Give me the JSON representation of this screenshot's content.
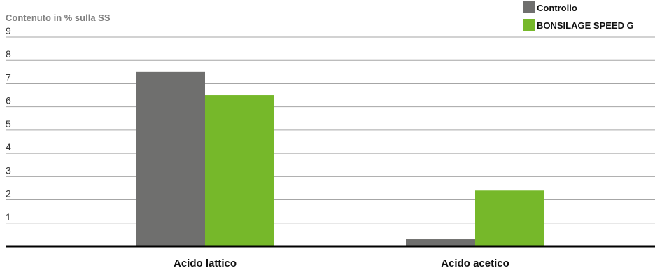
{
  "chart_data": {
    "type": "bar",
    "ylabel": "Contenuto in % sulla SS",
    "xlabel": "",
    "title": "",
    "categories": [
      "Acido lattico",
      "Acido acetico"
    ],
    "series": [
      {
        "name": "Controllo",
        "values": [
          7.5,
          0.3
        ],
        "color": "#6f6f6e"
      },
      {
        "name": "BONSILAGE SPEED G",
        "values": [
          6.5,
          2.4
        ],
        "color": "#76b82a"
      }
    ],
    "ylim": [
      0,
      9
    ],
    "yticks": [
      1,
      2,
      3,
      4,
      5,
      6,
      7,
      8,
      9
    ],
    "grid": true,
    "legend_position": "top-right"
  }
}
